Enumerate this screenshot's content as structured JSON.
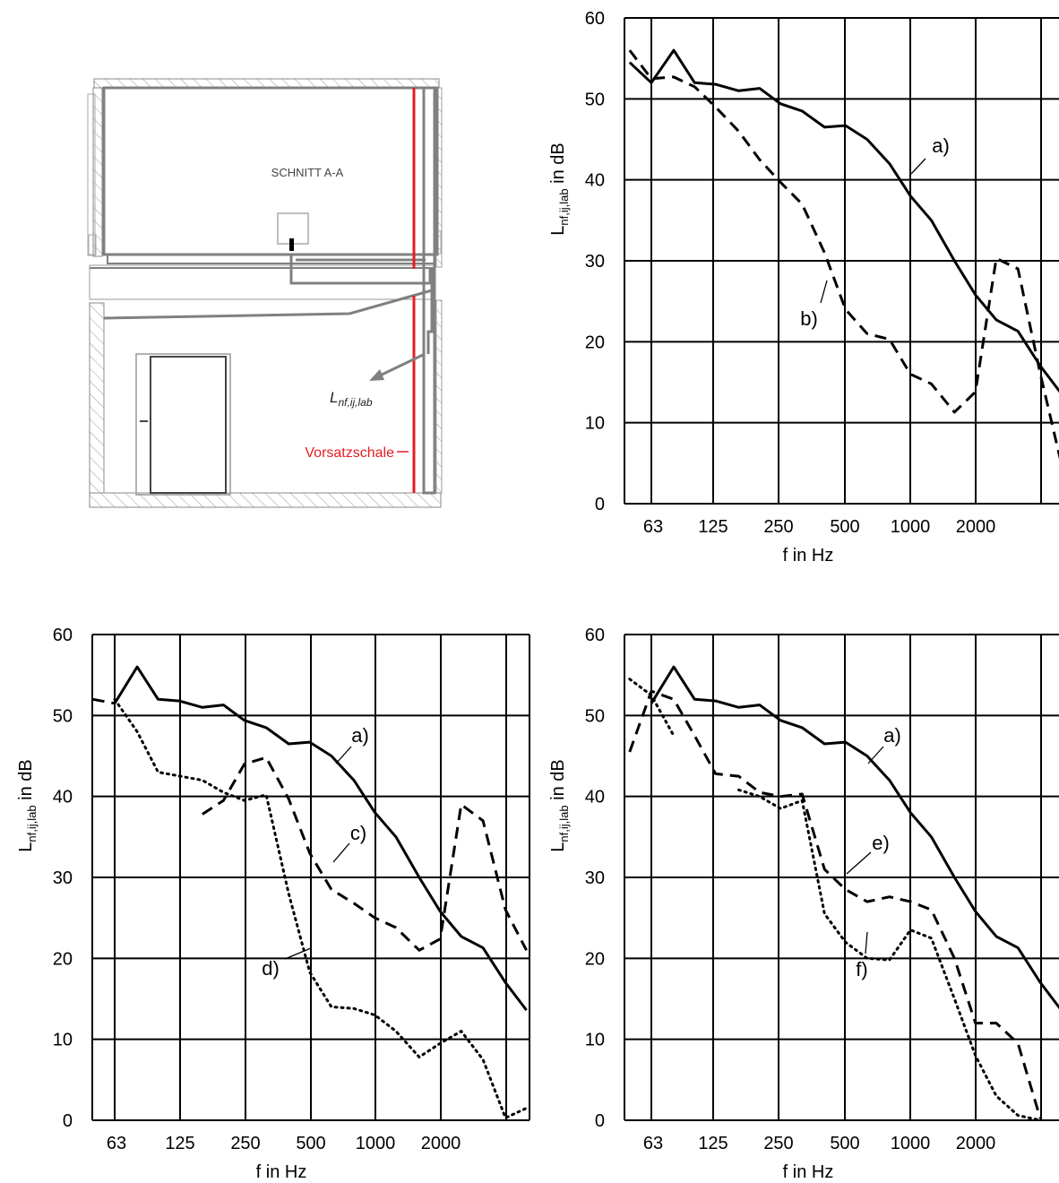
{
  "drawing": {
    "section_label": "SCHNITT A-A",
    "measure_label": "L",
    "measure_subscript": "nf,ij,lab",
    "lining_label": "Vorsatzschale",
    "colors": {
      "lining": "#e31e24",
      "structure": "#808080",
      "hatch": "#999999"
    }
  },
  "chart_data": [
    {
      "type": "line",
      "title": "",
      "ylabel": "L",
      "ylabel_subscript": "nf,ij,lab",
      "ylabel_unit": " in dB",
      "xlabel": "f in Hz",
      "ylim": [
        0,
        60
      ],
      "yticks": [
        0,
        10,
        20,
        30,
        40,
        50,
        60
      ],
      "x_scale": "log (third-octave bands)",
      "x_tick_labels": [
        "63",
        "125",
        "250",
        "500",
        "1000",
        "2000"
      ],
      "grid": true,
      "series": [
        {
          "name": "a)",
          "style": "solid",
          "x": [
            50,
            63,
            80,
            100,
            125,
            160,
            200,
            250,
            315,
            400,
            500,
            630,
            800,
            1000,
            1250,
            1600,
            2000,
            2500,
            3150,
            4000,
            5000
          ],
          "y": [
            54.5,
            52,
            56,
            52,
            51.8,
            51,
            51.3,
            49.4,
            48.5,
            46.5,
            46.7,
            45,
            42,
            38,
            35,
            30,
            25.8,
            22.7,
            21.3,
            17,
            13.6
          ]
        },
        {
          "name": "b)",
          "style": "dashed",
          "x": [
            50,
            63,
            80,
            100,
            125,
            160,
            200,
            250,
            315,
            400,
            500,
            630,
            800,
            1000,
            1250,
            1600,
            2000,
            2500,
            3150,
            4000,
            5000
          ],
          "y": [
            56,
            52.5,
            52.7,
            51.5,
            49,
            46,
            42.5,
            39.7,
            37,
            31,
            24,
            21,
            20.3,
            16,
            14.8,
            11.3,
            13.8,
            30.3,
            29,
            16,
            5
          ]
        }
      ],
      "annotations": [
        "a)",
        "b)"
      ]
    },
    {
      "type": "line",
      "title": "",
      "ylabel": "L",
      "ylabel_subscript": "nf,ij,lab",
      "ylabel_unit": " in dB",
      "xlabel": "f in Hz",
      "ylim": [
        0,
        60
      ],
      "yticks": [
        0,
        10,
        20,
        30,
        40,
        50,
        60
      ],
      "x_scale": "log (third-octave bands)",
      "x_tick_labels": [
        "63",
        "125",
        "250",
        "500",
        "1000",
        "2000"
      ],
      "grid": true,
      "series": [
        {
          "name": "a)",
          "style": "solid",
          "x": [
            63,
            80,
            100,
            125,
            160,
            200,
            250,
            315,
            400,
            500,
            630,
            800,
            1000,
            1250,
            1600,
            2000,
            2500,
            3150,
            4000,
            5000
          ],
          "y": [
            51.5,
            56,
            52,
            51.8,
            51,
            51.3,
            49.4,
            48.5,
            46.5,
            46.7,
            45,
            42,
            38,
            35,
            30,
            25.8,
            22.7,
            21.3,
            17,
            13.6
          ]
        },
        {
          "name": "c)",
          "style": "dashed",
          "x": [
            50,
            63,
            160,
            200,
            250,
            315,
            400,
            500,
            630,
            800,
            1000,
            1250,
            1600,
            2000,
            2500,
            3150,
            4000,
            5000
          ],
          "y": [
            52,
            51.5,
            37.8,
            39.5,
            44,
            44.8,
            39.7,
            33,
            28.5,
            26.8,
            25,
            23.8,
            21,
            22.4,
            39,
            37,
            26,
            21
          ]
        },
        {
          "name": "d)",
          "style": "dotted",
          "x": [
            63,
            80,
            100,
            160,
            200,
            250,
            315,
            400,
            500,
            630,
            800,
            1000,
            1250,
            1600,
            2000,
            2500,
            3150,
            4000,
            5000
          ],
          "y": [
            52,
            48,
            43,
            42,
            40.5,
            39.5,
            40.2,
            28,
            18.3,
            14,
            13.8,
            13,
            11,
            7.8,
            9.5,
            11,
            7.5,
            0.3,
            1.5
          ]
        }
      ],
      "annotations": [
        "a)",
        "c)",
        "d)"
      ]
    },
    {
      "type": "line",
      "title": "",
      "ylabel": "L",
      "ylabel_subscript": "nf,ij,lab",
      "ylabel_unit": " in dB",
      "xlabel": "f in Hz",
      "ylim": [
        0,
        60
      ],
      "yticks": [
        0,
        10,
        20,
        30,
        40,
        50,
        60
      ],
      "x_scale": "log (third-octave bands)",
      "x_tick_labels": [
        "63",
        "125",
        "250",
        "500",
        "1000",
        "2000"
      ],
      "grid": true,
      "series": [
        {
          "name": "a)",
          "style": "solid",
          "x": [
            63,
            80,
            100,
            125,
            160,
            200,
            250,
            315,
            400,
            500,
            630,
            800,
            1000,
            1250,
            1600,
            2000,
            2500,
            3150,
            4000,
            5000
          ],
          "y": [
            51.5,
            56,
            52,
            51.8,
            51,
            51.3,
            49.4,
            48.5,
            46.5,
            46.7,
            45,
            42,
            38,
            35,
            30,
            25.8,
            22.7,
            21.3,
            17,
            13.6
          ]
        },
        {
          "name": "e)",
          "style": "dashed",
          "x": [
            50,
            63,
            80,
            100,
            125,
            160,
            200,
            250,
            315,
            400,
            500,
            630,
            800,
            1000,
            1250,
            1600,
            2000,
            2500,
            3150,
            4000
          ],
          "y": [
            45.5,
            53,
            52,
            47.5,
            42.8,
            42.5,
            40.5,
            40,
            40.3,
            31,
            28.5,
            27,
            27.6,
            27,
            26,
            20,
            12,
            12,
            9.5,
            0.2
          ]
        },
        {
          "name": "f)",
          "style": "dotted",
          "x": [
            50,
            63,
            80,
            160,
            200,
            250,
            315,
            400,
            500,
            630,
            800,
            1000,
            1250,
            1600,
            2000,
            2500,
            3150,
            4000
          ],
          "y": [
            54.5,
            52.5,
            47.5,
            40.8,
            40,
            38.5,
            39.5,
            25.5,
            22,
            20,
            19.8,
            23.5,
            22.5,
            15,
            8,
            3,
            0.6,
            0
          ]
        }
      ],
      "annotations": [
        "a)",
        "e)",
        "f)"
      ]
    }
  ]
}
